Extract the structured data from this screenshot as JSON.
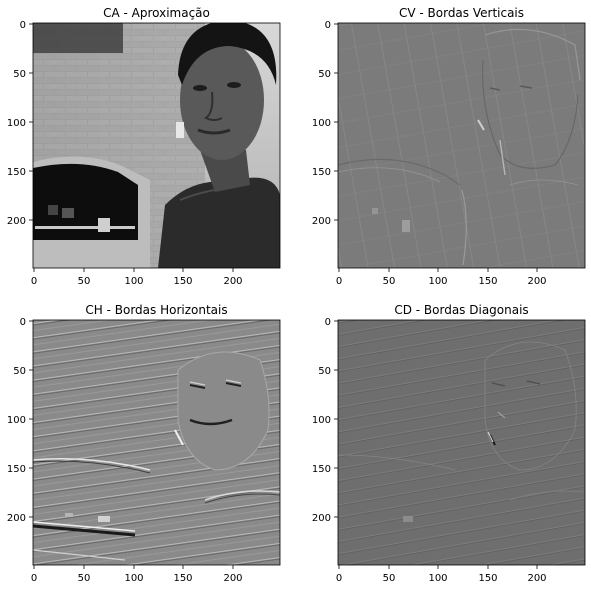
{
  "figure": {
    "panels": [
      {
        "id": "ca",
        "title": "CA - Aproximação",
        "image": "wavelet approximation (grayscale photo: man in front of brick oven)",
        "x_ticks": [
          "0",
          "50",
          "100",
          "150",
          "200"
        ],
        "y_ticks": [
          "0",
          "50",
          "100",
          "150",
          "200"
        ]
      },
      {
        "id": "cv",
        "title": "CV - Bordas Verticais",
        "image": "vertical edge detail coefficients",
        "x_ticks": [
          "0",
          "50",
          "100",
          "150",
          "200"
        ],
        "y_ticks": [
          "0",
          "50",
          "100",
          "150",
          "200"
        ]
      },
      {
        "id": "ch",
        "title": "CH - Bordas Horizontais",
        "image": "horizontal edge detail coefficients",
        "x_ticks": [
          "0",
          "50",
          "100",
          "150",
          "200"
        ],
        "y_ticks": [
          "0",
          "50",
          "100",
          "150",
          "200"
        ]
      },
      {
        "id": "cd",
        "title": "CD - Bordas Diagonais",
        "image": "diagonal edge detail coefficients",
        "x_ticks": [
          "0",
          "50",
          "100",
          "150",
          "200"
        ],
        "y_ticks": [
          "0",
          "50",
          "100",
          "150",
          "200"
        ]
      }
    ]
  },
  "colors": {
    "detail_gray": "#7f7f7f",
    "axis": "#000000"
  }
}
